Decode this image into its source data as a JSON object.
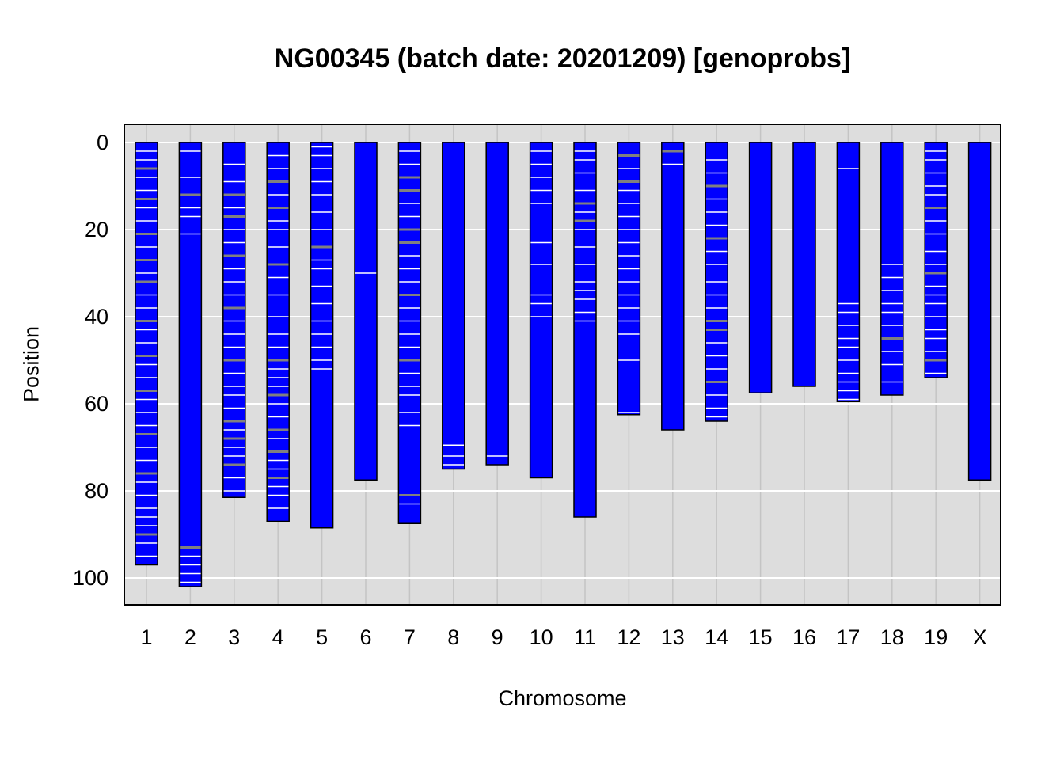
{
  "chart_data": {
    "type": "chromosome_map",
    "title": "NG00345 (batch date: 20201209) [genoprobs]",
    "xlabel": "Chromosome",
    "ylabel": "Position",
    "y_axis": {
      "ylim": [
        0,
        105
      ],
      "ticks": [
        0,
        20,
        40,
        60,
        80,
        100
      ],
      "reversed": true
    },
    "grid": true,
    "colors": {
      "background": "#dddddd",
      "chromosome_fill": "#0000ff",
      "grid": "#ffffff",
      "marker_white": "#ffffff",
      "marker_gray": "#808080"
    },
    "chromosomes": [
      {
        "name": "1",
        "length": 97,
        "markers": [
          [
            2,
            "w"
          ],
          [
            4,
            "w"
          ],
          [
            6,
            "g"
          ],
          [
            8,
            "w"
          ],
          [
            11,
            "w"
          ],
          [
            13,
            "g"
          ],
          [
            15,
            "w"
          ],
          [
            18,
            "w"
          ],
          [
            21,
            "g"
          ],
          [
            24,
            "w"
          ],
          [
            27,
            "g"
          ],
          [
            30,
            "w"
          ],
          [
            32,
            "g"
          ],
          [
            35,
            "w"
          ],
          [
            38,
            "w"
          ],
          [
            41,
            "g"
          ],
          [
            43,
            "w"
          ],
          [
            46,
            "w"
          ],
          [
            49,
            "g"
          ],
          [
            51,
            "w"
          ],
          [
            54,
            "w"
          ],
          [
            57,
            "g"
          ],
          [
            59,
            "w"
          ],
          [
            62,
            "w"
          ],
          [
            65,
            "w"
          ],
          [
            67,
            "g"
          ],
          [
            70,
            "w"
          ],
          [
            73,
            "w"
          ],
          [
            76,
            "g"
          ],
          [
            78,
            "w"
          ],
          [
            81,
            "w"
          ],
          [
            84,
            "w"
          ],
          [
            86,
            "w"
          ],
          [
            88,
            "w"
          ],
          [
            90,
            "g"
          ],
          [
            92,
            "w"
          ],
          [
            95,
            "w"
          ]
        ]
      },
      {
        "name": "2",
        "length": 102,
        "markers": [
          [
            2,
            "w"
          ],
          [
            8,
            "w"
          ],
          [
            12,
            "g"
          ],
          [
            15,
            "w"
          ],
          [
            17,
            "w"
          ],
          [
            21,
            "w"
          ],
          [
            93,
            "g"
          ],
          [
            95,
            "w"
          ],
          [
            97,
            "w"
          ],
          [
            99,
            "w"
          ],
          [
            101,
            "w"
          ]
        ]
      },
      {
        "name": "3",
        "length": 81.5,
        "markers": [
          [
            5,
            "w"
          ],
          [
            9,
            "w"
          ],
          [
            12,
            "g"
          ],
          [
            15,
            "w"
          ],
          [
            17,
            "g"
          ],
          [
            20,
            "w"
          ],
          [
            23,
            "w"
          ],
          [
            26,
            "g"
          ],
          [
            29,
            "w"
          ],
          [
            32,
            "w"
          ],
          [
            35,
            "w"
          ],
          [
            38,
            "g"
          ],
          [
            41,
            "w"
          ],
          [
            44,
            "w"
          ],
          [
            47,
            "w"
          ],
          [
            50,
            "g"
          ],
          [
            53,
            "w"
          ],
          [
            56,
            "w"
          ],
          [
            58,
            "w"
          ],
          [
            61,
            "w"
          ],
          [
            64,
            "g"
          ],
          [
            66,
            "w"
          ],
          [
            68,
            "g"
          ],
          [
            70,
            "w"
          ],
          [
            72,
            "w"
          ],
          [
            74,
            "g"
          ],
          [
            77,
            "w"
          ],
          [
            80,
            "w"
          ]
        ]
      },
      {
        "name": "4",
        "length": 87,
        "markers": [
          [
            3,
            "w"
          ],
          [
            6,
            "w"
          ],
          [
            9,
            "g"
          ],
          [
            12,
            "w"
          ],
          [
            15,
            "g"
          ],
          [
            18,
            "w"
          ],
          [
            20,
            "w"
          ],
          [
            24,
            "w"
          ],
          [
            28,
            "g"
          ],
          [
            31,
            "w"
          ],
          [
            35,
            "w"
          ],
          [
            40,
            "w"
          ],
          [
            44,
            "w"
          ],
          [
            47,
            "w"
          ],
          [
            50,
            "g"
          ],
          [
            52,
            "w"
          ],
          [
            54,
            "w"
          ],
          [
            56,
            "w"
          ],
          [
            58,
            "g"
          ],
          [
            60,
            "w"
          ],
          [
            63,
            "w"
          ],
          [
            66,
            "g"
          ],
          [
            68,
            "w"
          ],
          [
            71,
            "g"
          ],
          [
            73,
            "w"
          ],
          [
            75,
            "w"
          ],
          [
            77,
            "g"
          ],
          [
            79,
            "w"
          ],
          [
            81,
            "w"
          ],
          [
            84,
            "w"
          ]
        ]
      },
      {
        "name": "5",
        "length": 88.5,
        "markers": [
          [
            1,
            "w"
          ],
          [
            3,
            "w"
          ],
          [
            6,
            "w"
          ],
          [
            9,
            "w"
          ],
          [
            12,
            "w"
          ],
          [
            16,
            "w"
          ],
          [
            20,
            "w"
          ],
          [
            24,
            "g"
          ],
          [
            27,
            "w"
          ],
          [
            29,
            "w"
          ],
          [
            33,
            "w"
          ],
          [
            37,
            "w"
          ],
          [
            41,
            "w"
          ],
          [
            44,
            "w"
          ],
          [
            47,
            "w"
          ],
          [
            50,
            "w"
          ],
          [
            52,
            "w"
          ]
        ]
      },
      {
        "name": "6",
        "length": 77.5,
        "markers": [
          [
            30,
            "w"
          ]
        ]
      },
      {
        "name": "7",
        "length": 87.5,
        "markers": [
          [
            2,
            "w"
          ],
          [
            5,
            "w"
          ],
          [
            8,
            "g"
          ],
          [
            11,
            "g"
          ],
          [
            14,
            "w"
          ],
          [
            17,
            "w"
          ],
          [
            20,
            "g"
          ],
          [
            23,
            "g"
          ],
          [
            26,
            "w"
          ],
          [
            29,
            "w"
          ],
          [
            32,
            "w"
          ],
          [
            35,
            "g"
          ],
          [
            38,
            "w"
          ],
          [
            41,
            "w"
          ],
          [
            44,
            "w"
          ],
          [
            47,
            "w"
          ],
          [
            50,
            "g"
          ],
          [
            53,
            "w"
          ],
          [
            56,
            "w"
          ],
          [
            58,
            "w"
          ],
          [
            62,
            "w"
          ],
          [
            65,
            "w"
          ],
          [
            81,
            "g"
          ],
          [
            83,
            "w"
          ]
        ]
      },
      {
        "name": "8",
        "length": 75,
        "markers": [
          [
            69.5,
            "w"
          ],
          [
            72,
            "w"
          ],
          [
            74,
            "w"
          ]
        ]
      },
      {
        "name": "9",
        "length": 74,
        "markers": [
          [
            72,
            "w"
          ]
        ]
      },
      {
        "name": "10",
        "length": 77,
        "markers": [
          [
            2,
            "w"
          ],
          [
            5,
            "w"
          ],
          [
            8,
            "w"
          ],
          [
            11,
            "w"
          ],
          [
            14,
            "w"
          ],
          [
            23,
            "w"
          ],
          [
            28,
            "w"
          ],
          [
            35,
            "w"
          ],
          [
            37,
            "w"
          ],
          [
            40,
            "w"
          ]
        ]
      },
      {
        "name": "11",
        "length": 86,
        "markers": [
          [
            2,
            "w"
          ],
          [
            4,
            "w"
          ],
          [
            7,
            "w"
          ],
          [
            11,
            "w"
          ],
          [
            14,
            "g"
          ],
          [
            16,
            "w"
          ],
          [
            18,
            "g"
          ],
          [
            20,
            "w"
          ],
          [
            24,
            "w"
          ],
          [
            28,
            "w"
          ],
          [
            32,
            "w"
          ],
          [
            34,
            "w"
          ],
          [
            36,
            "w"
          ],
          [
            39,
            "w"
          ],
          [
            41,
            "w"
          ]
        ]
      },
      {
        "name": "12",
        "length": 62.5,
        "markers": [
          [
            3,
            "g"
          ],
          [
            6,
            "w"
          ],
          [
            9,
            "g"
          ],
          [
            11,
            "w"
          ],
          [
            14,
            "w"
          ],
          [
            17,
            "w"
          ],
          [
            20,
            "w"
          ],
          [
            23,
            "w"
          ],
          [
            26,
            "w"
          ],
          [
            29,
            "w"
          ],
          [
            32,
            "w"
          ],
          [
            35,
            "w"
          ],
          [
            38,
            "w"
          ],
          [
            41,
            "w"
          ],
          [
            44,
            "w"
          ],
          [
            50,
            "w"
          ],
          [
            62,
            "w"
          ]
        ]
      },
      {
        "name": "13",
        "length": 66,
        "markers": [
          [
            2,
            "g"
          ],
          [
            5,
            "w"
          ]
        ]
      },
      {
        "name": "14",
        "length": 64,
        "markers": [
          [
            4,
            "w"
          ],
          [
            7,
            "w"
          ],
          [
            10,
            "g"
          ],
          [
            13,
            "w"
          ],
          [
            16,
            "w"
          ],
          [
            19,
            "w"
          ],
          [
            22,
            "g"
          ],
          [
            25,
            "w"
          ],
          [
            28,
            "w"
          ],
          [
            32,
            "w"
          ],
          [
            35,
            "w"
          ],
          [
            38,
            "w"
          ],
          [
            41,
            "g"
          ],
          [
            43,
            "g"
          ],
          [
            46,
            "w"
          ],
          [
            49,
            "w"
          ],
          [
            52,
            "w"
          ],
          [
            55,
            "g"
          ],
          [
            58,
            "w"
          ],
          [
            61,
            "w"
          ],
          [
            63,
            "w"
          ]
        ]
      },
      {
        "name": "15",
        "length": 57.5,
        "markers": []
      },
      {
        "name": "16",
        "length": 56,
        "markers": []
      },
      {
        "name": "17",
        "length": 59.5,
        "markers": [
          [
            6,
            "w"
          ],
          [
            37,
            "w"
          ],
          [
            39,
            "w"
          ],
          [
            42,
            "w"
          ],
          [
            45,
            "w"
          ],
          [
            47,
            "w"
          ],
          [
            50,
            "w"
          ],
          [
            53,
            "w"
          ],
          [
            55,
            "w"
          ],
          [
            57,
            "w"
          ],
          [
            59,
            "w"
          ]
        ]
      },
      {
        "name": "18",
        "length": 58,
        "markers": [
          [
            28,
            "w"
          ],
          [
            31,
            "w"
          ],
          [
            34,
            "w"
          ],
          [
            37,
            "w"
          ],
          [
            39,
            "w"
          ],
          [
            42,
            "w"
          ],
          [
            45,
            "g"
          ],
          [
            48,
            "w"
          ],
          [
            51,
            "w"
          ],
          [
            55,
            "w"
          ]
        ]
      },
      {
        "name": "19",
        "length": 54,
        "markers": [
          [
            2,
            "w"
          ],
          [
            4,
            "w"
          ],
          [
            7,
            "w"
          ],
          [
            10,
            "w"
          ],
          [
            12,
            "w"
          ],
          [
            15,
            "g"
          ],
          [
            18,
            "w"
          ],
          [
            21,
            "w"
          ],
          [
            25,
            "w"
          ],
          [
            28,
            "w"
          ],
          [
            30,
            "g"
          ],
          [
            33,
            "w"
          ],
          [
            35,
            "w"
          ],
          [
            37,
            "w"
          ],
          [
            40,
            "w"
          ],
          [
            43,
            "w"
          ],
          [
            45,
            "w"
          ],
          [
            48,
            "w"
          ],
          [
            50,
            "g"
          ],
          [
            53,
            "w"
          ]
        ]
      },
      {
        "name": "X",
        "length": 77.5,
        "markers": []
      }
    ]
  }
}
